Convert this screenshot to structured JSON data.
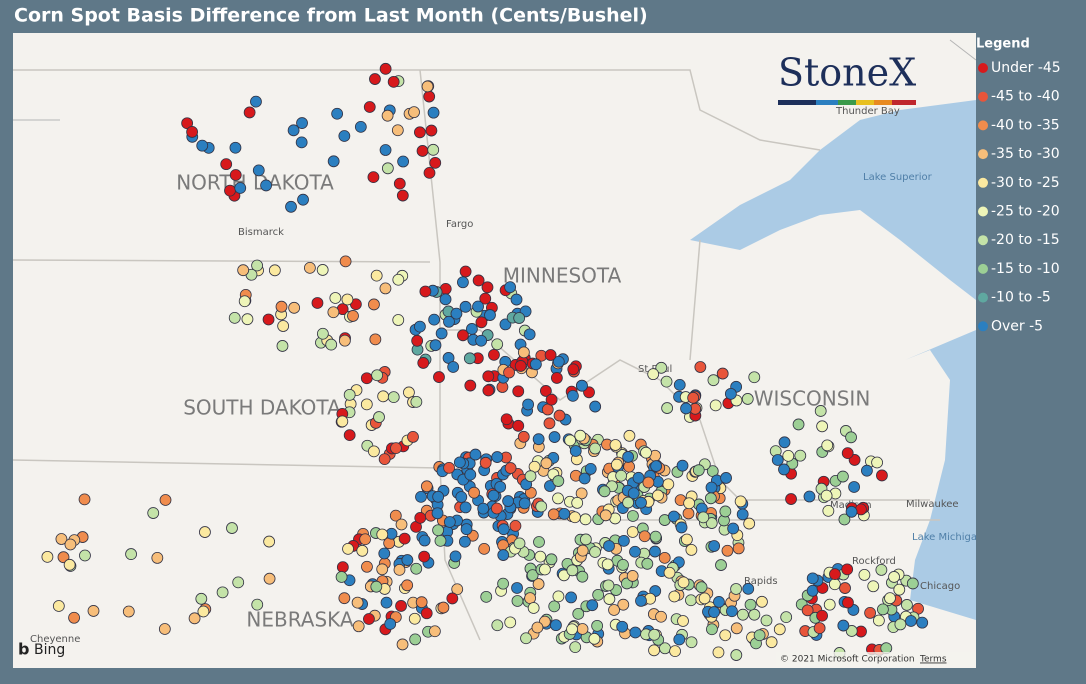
{
  "header": {
    "title": "Corn Spot Basis Difference from Last Month (Cents/Bushel)"
  },
  "legend": {
    "title": "Legend",
    "items": [
      {
        "label": "Under -45",
        "color": "#d7191c"
      },
      {
        "label": "-45 to -40",
        "color": "#e8553a"
      },
      {
        "label": "-40 to -35",
        "color": "#f08c4d"
      },
      {
        "label": "-35 to -30",
        "color": "#f7be7a"
      },
      {
        "label": "-30 to -25",
        "color": "#fbe9a0"
      },
      {
        "label": "-25 to -20",
        "color": "#eef5b8"
      },
      {
        "label": "-20 to -15",
        "color": "#c4e3a8"
      },
      {
        "label": "-15 to -10",
        "color": "#9ccf95"
      },
      {
        "label": "-10 to -5",
        "color": "#5fa8a0"
      },
      {
        "label": "Over -5",
        "color": "#2b7fc0"
      }
    ]
  },
  "map": {
    "states": [
      "NORTH DAKOTA",
      "MINNESOTA",
      "SOUTH DAKOTA",
      "WISCONSIN",
      "NEBRASKA"
    ],
    "places": [
      "Bismarck",
      "Fargo",
      "Thunder Bay",
      "Lake Superior",
      "Milwaukee",
      "Lake Michigan",
      "Chicago",
      "Madison",
      "Rockford",
      "Rapids",
      "St Paul",
      "Cheyenne"
    ],
    "logo": "StoneX",
    "provider": "Bing",
    "copyright": "© 2021 Microsoft Corporation",
    "terms": "Terms"
  }
}
